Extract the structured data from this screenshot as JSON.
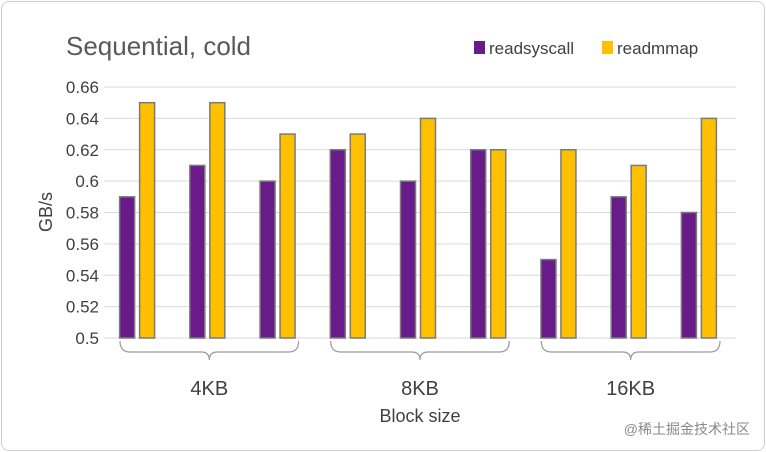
{
  "chart_data": {
    "type": "bar",
    "title": "Sequential, cold",
    "xlabel": "Block size",
    "ylabel": "GB/s",
    "ylim": [
      0.5,
      0.66
    ],
    "yticks": [
      "0.66",
      "0.64",
      "0.62",
      "0.6",
      "0.58",
      "0.56",
      "0.54",
      "0.52",
      "0.5"
    ],
    "groups": [
      "4KB",
      "8KB",
      "16KB"
    ],
    "categories_per_group": 3,
    "legend_position": "top-right",
    "grid": true,
    "series": [
      {
        "name": "readsyscall",
        "color": "#6a1b8a",
        "values": [
          0.59,
          0.61,
          0.6,
          0.62,
          0.6,
          0.62,
          0.55,
          0.59,
          0.58
        ]
      },
      {
        "name": "readmmap",
        "color": "#ffc000",
        "values": [
          0.65,
          0.65,
          0.63,
          0.63,
          0.64,
          0.62,
          0.62,
          0.61,
          0.64
        ]
      }
    ]
  },
  "watermark": "@稀土掘金技术社区"
}
